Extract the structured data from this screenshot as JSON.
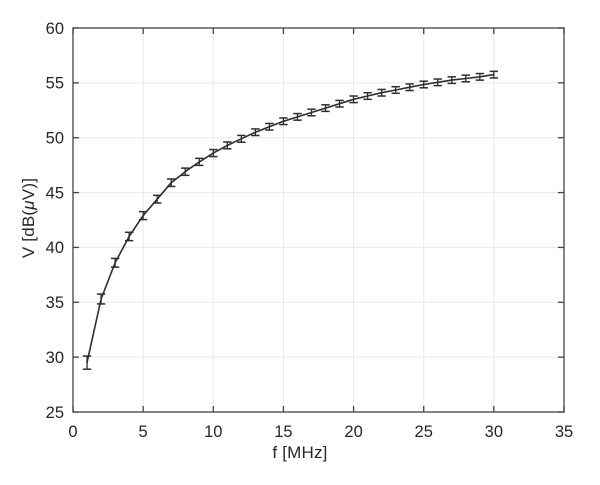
{
  "figure": {
    "background": "#ffffff"
  },
  "chart_data": {
    "type": "line",
    "title": "",
    "xlabel": "f [MHz]",
    "ylabel": "V [dB(μV)]",
    "ylabel_parts": {
      "prefix": "V [dB(",
      "mu": "μ",
      "suffix": "V)]"
    },
    "xlim": [
      0,
      35
    ],
    "ylim": [
      25,
      60
    ],
    "xticks": [
      0,
      5,
      10,
      15,
      20,
      25,
      30,
      35
    ],
    "yticks": [
      25,
      30,
      35,
      40,
      45,
      50,
      55,
      60
    ],
    "grid": true,
    "legend_position": "none",
    "box": true,
    "tick_direction": "in",
    "series": [
      {
        "name": "voltage-vs-frequency-errorbar-series",
        "marker": "none",
        "error_bars": true,
        "x": [
          1,
          2,
          3,
          4,
          5,
          6,
          7,
          8,
          9,
          10,
          11,
          12,
          13,
          14,
          15,
          16,
          17,
          18,
          19,
          20,
          21,
          22,
          23,
          24,
          25,
          26,
          27,
          28,
          29,
          30
        ],
        "y": [
          29.5,
          35.3,
          38.6,
          41.0,
          42.9,
          44.4,
          45.9,
          46.9,
          47.8,
          48.6,
          49.3,
          49.9,
          50.5,
          51.0,
          51.5,
          51.9,
          52.3,
          52.7,
          53.1,
          53.5,
          53.8,
          54.1,
          54.35,
          54.6,
          54.85,
          55.05,
          55.25,
          55.4,
          55.55,
          55.75
        ],
        "yerr": [
          0.6,
          0.45,
          0.4,
          0.38,
          0.36,
          0.35,
          0.34,
          0.33,
          0.32,
          0.32,
          0.31,
          0.31,
          0.3,
          0.3,
          0.3,
          0.3,
          0.3,
          0.3,
          0.3,
          0.3,
          0.3,
          0.3,
          0.3,
          0.3,
          0.3,
          0.3,
          0.3,
          0.3,
          0.3,
          0.3
        ]
      }
    ],
    "colors": {
      "line": "#2e2e2e",
      "error_bar": "#2e2e2e",
      "grid": "#e8e8e8",
      "axis": "#424242",
      "tick_text": "#262626",
      "background": "#ffffff"
    }
  }
}
